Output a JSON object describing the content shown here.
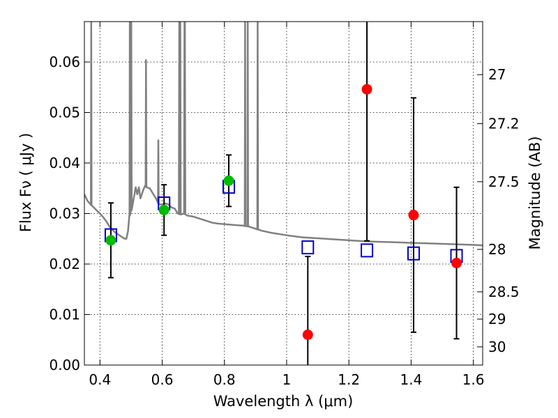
{
  "chart_data": {
    "type": "scatter",
    "xlabel": "Wavelength  λ (μm)",
    "ylabel": "Flux  Fν  ( μJy )",
    "y2label": "Magnitude (AB)",
    "xlim": [
      0.35,
      1.63
    ],
    "ylim": [
      0.0,
      0.068
    ],
    "grid": true,
    "x_ticks": [
      0.4,
      0.6,
      0.8,
      1.0,
      1.2,
      1.4,
      1.6
    ],
    "x_tick_labels": [
      "0.4",
      "0.6",
      "0.8",
      "1",
      "1.2",
      "1.4",
      "1.6"
    ],
    "y_ticks": [
      0.0,
      0.01,
      0.02,
      0.03,
      0.04,
      0.05,
      0.06
    ],
    "y_tick_labels": [
      "0.00",
      "0.01",
      "0.02",
      "0.03",
      "0.04",
      "0.05",
      "0.06"
    ],
    "y2_ticks": [
      {
        "label": "27",
        "flux": 0.0575
      },
      {
        "label": "27.2",
        "flux": 0.0478
      },
      {
        "label": "27.5",
        "flux": 0.0363
      },
      {
        "label": "28",
        "flux": 0.0229
      },
      {
        "label": "28.5",
        "flux": 0.0145
      },
      {
        "label": "29",
        "flux": 0.0091
      },
      {
        "label": "30",
        "flux": 0.0036
      }
    ],
    "colors": {
      "model": "#808080",
      "model_photometry": "#0000cc",
      "detected": "#00bb00",
      "undetected": "#ff0000",
      "errorbar": "#000000",
      "grid": "#000000"
    },
    "model_sed": [
      [
        0.35,
        0.0338
      ],
      [
        0.36,
        0.0325
      ],
      [
        0.37,
        0.0318
      ],
      [
        0.375,
        0.0315
      ],
      [
        0.38,
        0.0312
      ],
      [
        0.39,
        0.0306
      ],
      [
        0.4,
        0.03
      ],
      [
        0.41,
        0.0293
      ],
      [
        0.42,
        0.0285
      ],
      [
        0.43,
        0.0275
      ],
      [
        0.44,
        0.0268
      ],
      [
        0.45,
        0.0262
      ],
      [
        0.46,
        0.0258
      ],
      [
        0.47,
        0.0254
      ],
      [
        0.48,
        0.025
      ],
      [
        0.485,
        0.025
      ],
      [
        0.49,
        0.0265
      ],
      [
        0.495,
        0.0295
      ],
      [
        0.5,
        0.0305
      ],
      [
        0.51,
        0.0335
      ],
      [
        0.515,
        0.0352
      ],
      [
        0.52,
        0.0338
      ],
      [
        0.525,
        0.0352
      ],
      [
        0.53,
        0.033
      ],
      [
        0.54,
        0.0348
      ],
      [
        0.545,
        0.0355
      ],
      [
        0.55,
        0.0352
      ],
      [
        0.56,
        0.035
      ],
      [
        0.57,
        0.034
      ],
      [
        0.58,
        0.033
      ],
      [
        0.59,
        0.0318
      ],
      [
        0.6,
        0.0318
      ],
      [
        0.61,
        0.032
      ],
      [
        0.62,
        0.0318
      ],
      [
        0.63,
        0.0312
      ],
      [
        0.64,
        0.031
      ],
      [
        0.65,
        0.03
      ],
      [
        0.66,
        0.0298
      ],
      [
        0.67,
        0.03
      ],
      [
        0.68,
        0.0296
      ],
      [
        0.7,
        0.0294
      ],
      [
        0.72,
        0.029
      ],
      [
        0.74,
        0.0286
      ],
      [
        0.76,
        0.0282
      ],
      [
        0.78,
        0.028
      ],
      [
        0.8,
        0.0279
      ],
      [
        0.82,
        0.0278
      ],
      [
        0.84,
        0.0277
      ],
      [
        0.86,
        0.0276
      ],
      [
        0.88,
        0.0274
      ],
      [
        0.9,
        0.027
      ],
      [
        0.92,
        0.0266
      ],
      [
        0.95,
        0.0262
      ],
      [
        1.0,
        0.0257
      ],
      [
        1.05,
        0.0253
      ],
      [
        1.1,
        0.0251
      ],
      [
        1.15,
        0.0249
      ],
      [
        1.2,
        0.0247
      ],
      [
        1.25,
        0.0245
      ],
      [
        1.3,
        0.0244
      ],
      [
        1.35,
        0.0243
      ],
      [
        1.4,
        0.0242
      ],
      [
        1.45,
        0.0241
      ],
      [
        1.5,
        0.024
      ],
      [
        1.55,
        0.0239
      ],
      [
        1.6,
        0.0238
      ],
      [
        1.63,
        0.0237
      ]
    ],
    "emission_lines": [
      {
        "x": 0.372,
        "peak": 0.068
      },
      {
        "x": 0.4959,
        "peak": 0.068
      },
      {
        "x": 0.5007,
        "peak": 0.068
      },
      {
        "x": 0.5876,
        "peak": 0.0445
      },
      {
        "x": 0.548,
        "peak": 0.0604
      },
      {
        "x": 0.6548,
        "peak": 0.068
      },
      {
        "x": 0.6563,
        "peak": 0.068
      },
      {
        "x": 0.6583,
        "peak": 0.068
      },
      {
        "x": 0.6716,
        "peak": 0.068
      },
      {
        "x": 0.6731,
        "peak": 0.068
      },
      {
        "x": 0.8665,
        "peak": 0.068
      },
      {
        "x": 0.875,
        "peak": 0.068
      },
      {
        "x": 0.9069,
        "peak": 0.068
      }
    ],
    "model_photometry": [
      {
        "x": 0.435,
        "y": 0.0257
      },
      {
        "x": 0.606,
        "y": 0.032
      },
      {
        "x": 0.814,
        "y": 0.0353
      },
      {
        "x": 1.068,
        "y": 0.0233
      },
      {
        "x": 1.258,
        "y": 0.0227
      },
      {
        "x": 1.408,
        "y": 0.0221
      },
      {
        "x": 1.546,
        "y": 0.0216
      }
    ],
    "observations": [
      {
        "x": 0.435,
        "y": 0.0247,
        "err": 0.0074,
        "detected": true
      },
      {
        "x": 0.606,
        "y": 0.0307,
        "err": 0.005,
        "detected": true
      },
      {
        "x": 0.814,
        "y": 0.0365,
        "err": 0.0051,
        "detected": true
      },
      {
        "x": 1.068,
        "y": 0.006,
        "err": 0.0155,
        "detected": false
      },
      {
        "x": 1.258,
        "y": 0.0546,
        "err": 0.03,
        "detected": false
      },
      {
        "x": 1.408,
        "y": 0.0297,
        "err": 0.0232,
        "detected": false
      },
      {
        "x": 1.546,
        "y": 0.0202,
        "err": 0.015,
        "detected": false
      }
    ]
  }
}
